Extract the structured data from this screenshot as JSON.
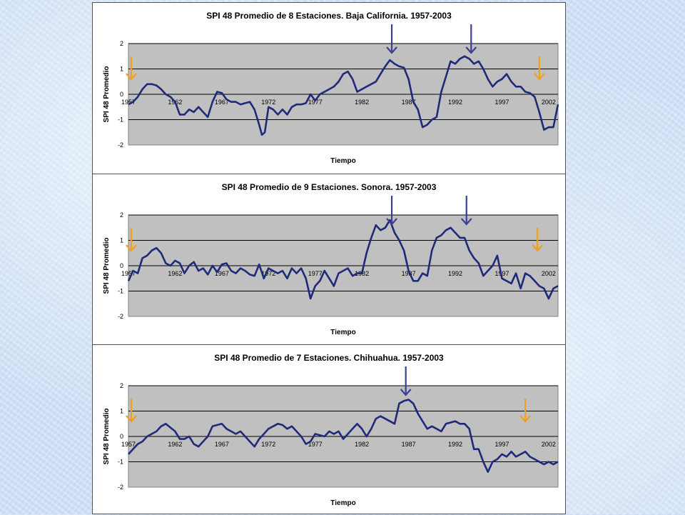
{
  "colors": {
    "plot_area": "#c0c0c0",
    "series_line": "#1f2a7a",
    "arrow_blue": "#3b3f95",
    "arrow_orange": "#f0a020",
    "gridline": "#000000"
  },
  "chart_data": [
    {
      "type": "line",
      "title": "SPI 48  Promedio de  8 Estaciones. Baja California. 1957-2003",
      "xlabel": "Tiempo",
      "ylabel": "SPI 48 Promedio",
      "xlim": [
        1957,
        2003
      ],
      "ylim": [
        -2,
        2
      ],
      "yticks": [
        "2",
        "1",
        "0",
        "-1",
        "-2"
      ],
      "xticks": [
        "1957",
        "1962",
        "1967",
        "1972",
        "1977",
        "1982",
        "1987",
        "1992",
        "1997",
        "2002"
      ],
      "grid": true,
      "series": [
        {
          "x": [
            1957.0,
            1957.5,
            1958.0,
            1958.5,
            1959.0,
            1959.5,
            1960.0,
            1960.5,
            1961.0,
            1961.5,
            1962.0,
            1962.5,
            1963.0,
            1963.5,
            1964.0,
            1964.5,
            1965.0,
            1965.5,
            1966.0,
            1966.5,
            1967.0,
            1967.5,
            1968.0,
            1968.5,
            1969.0,
            1969.5,
            1970.0,
            1970.5,
            1971.0,
            1971.3,
            1971.6,
            1972.0,
            1972.5,
            1973.0,
            1973.5,
            1974.0,
            1974.5,
            1975.0,
            1975.5,
            1976.0,
            1976.5,
            1977.0,
            1977.5,
            1978.0,
            1978.5,
            1979.0,
            1979.5,
            1980.0,
            1980.5,
            1981.0,
            1981.5,
            1982.0,
            1982.5,
            1983.0,
            1983.5,
            1984.0,
            1984.5,
            1985.0,
            1985.5,
            1986.0,
            1986.5,
            1987.0,
            1987.5,
            1988.0,
            1988.5,
            1989.0,
            1989.5,
            1990.0,
            1990.5,
            1991.0,
            1991.5,
            1992.0,
            1992.5,
            1993.0,
            1993.5,
            1994.0,
            1994.5,
            1995.0,
            1995.5,
            1996.0,
            1996.5,
            1997.0,
            1997.5,
            1998.0,
            1998.5,
            1999.0,
            1999.5,
            2000.0,
            2000.5,
            2001.0,
            2001.5,
            2002.0,
            2002.5,
            2003.0
          ],
          "y": [
            -0.4,
            -0.3,
            -0.1,
            0.2,
            0.4,
            0.4,
            0.35,
            0.2,
            0.0,
            -0.1,
            -0.3,
            -0.8,
            -0.8,
            -0.6,
            -0.7,
            -0.5,
            -0.7,
            -0.9,
            -0.3,
            0.1,
            0.05,
            -0.2,
            -0.3,
            -0.3,
            -0.4,
            -0.35,
            -0.3,
            -0.6,
            -1.2,
            -1.6,
            -1.5,
            -0.5,
            -0.6,
            -0.8,
            -0.6,
            -0.8,
            -0.5,
            -0.4,
            -0.4,
            -0.35,
            0.0,
            -0.25,
            0.0,
            0.1,
            0.2,
            0.3,
            0.5,
            0.8,
            0.9,
            0.6,
            0.1,
            0.2,
            0.3,
            0.4,
            0.5,
            0.8,
            1.1,
            1.35,
            1.2,
            1.1,
            1.05,
            0.6,
            -0.3,
            -0.6,
            -1.3,
            -1.2,
            -1.0,
            -0.9,
            0.1,
            0.7,
            1.3,
            1.2,
            1.4,
            1.5,
            1.4,
            1.2,
            1.3,
            1.0,
            0.6,
            0.3,
            0.5,
            0.6,
            0.8,
            0.5,
            0.3,
            0.3,
            0.1,
            0.05,
            -0.1,
            -0.7,
            -1.4,
            -1.3,
            -1.3,
            -0.4
          ]
        }
      ],
      "annotation_arrows": [
        {
          "color": "blue",
          "x": 1985.2
        },
        {
          "color": "blue",
          "x": 1993.7
        },
        {
          "color": "orange",
          "x": 1957.3
        },
        {
          "color": "orange",
          "x": 2001.0
        }
      ]
    },
    {
      "type": "line",
      "title": "SPI 48 Promedio de 9 Estaciones. Sonora. 1957-2003",
      "xlabel": "Tiempo",
      "ylabel": "SPI 48 Promedio",
      "xlim": [
        1957,
        2003
      ],
      "ylim": [
        -2,
        2
      ],
      "yticks": [
        "2",
        "1",
        "0",
        "-1",
        "-2"
      ],
      "xticks": [
        "1957",
        "1962",
        "1967",
        "1972",
        "1977",
        "1982",
        "1987",
        "1992",
        "1997",
        "2002"
      ],
      "grid": true,
      "series": [
        {
          "x": [
            1957.0,
            1957.5,
            1958.0,
            1958.5,
            1959.0,
            1959.5,
            1960.0,
            1960.5,
            1961.0,
            1961.5,
            1962.0,
            1962.5,
            1963.0,
            1963.5,
            1964.0,
            1964.5,
            1965.0,
            1965.5,
            1966.0,
            1966.5,
            1967.0,
            1967.5,
            1968.0,
            1968.5,
            1969.0,
            1969.5,
            1970.0,
            1970.5,
            1971.0,
            1971.5,
            1972.0,
            1972.5,
            1973.0,
            1973.5,
            1974.0,
            1974.5,
            1975.0,
            1975.5,
            1976.0,
            1976.5,
            1977.0,
            1977.5,
            1978.0,
            1978.5,
            1979.0,
            1979.5,
            1980.0,
            1980.5,
            1981.0,
            1981.5,
            1982.0,
            1982.5,
            1983.0,
            1983.5,
            1984.0,
            1984.5,
            1985.0,
            1985.5,
            1986.0,
            1986.5,
            1987.0,
            1987.5,
            1988.0,
            1988.5,
            1989.0,
            1989.5,
            1990.0,
            1990.5,
            1991.0,
            1991.5,
            1992.0,
            1992.5,
            1993.0,
            1993.5,
            1994.0,
            1994.5,
            1995.0,
            1995.5,
            1996.0,
            1996.5,
            1997.0,
            1997.5,
            1998.0,
            1998.5,
            1999.0,
            1999.5,
            2000.0,
            2000.5,
            2001.0,
            2001.5,
            2002.0,
            2002.5,
            2003.0
          ],
          "y": [
            -0.6,
            -0.2,
            -0.3,
            0.3,
            0.4,
            0.6,
            0.7,
            0.5,
            0.1,
            0.0,
            0.2,
            0.1,
            -0.3,
            0.0,
            0.15,
            -0.2,
            -0.1,
            -0.35,
            0.0,
            -0.25,
            0.05,
            0.1,
            -0.2,
            -0.3,
            -0.1,
            -0.2,
            -0.35,
            -0.4,
            0.05,
            -0.5,
            -0.1,
            -0.2,
            -0.3,
            -0.2,
            -0.5,
            -0.1,
            -0.3,
            -0.1,
            -0.5,
            -1.3,
            -0.8,
            -0.6,
            -0.2,
            -0.5,
            -0.8,
            -0.3,
            -0.2,
            -0.1,
            -0.4,
            -0.3,
            -0.3,
            0.5,
            1.1,
            1.6,
            1.4,
            1.5,
            1.8,
            1.3,
            1.0,
            0.6,
            -0.2,
            -0.6,
            -0.6,
            -0.3,
            -0.4,
            0.6,
            1.1,
            1.2,
            1.4,
            1.5,
            1.3,
            1.1,
            1.1,
            0.6,
            0.3,
            0.1,
            -0.4,
            -0.2,
            0.0,
            0.4,
            -0.5,
            -0.6,
            -0.7,
            -0.3,
            -0.9,
            -0.3,
            -0.4,
            -0.6,
            -0.8,
            -0.9,
            -1.3,
            -0.9,
            -0.8
          ]
        }
      ],
      "annotation_arrows": [
        {
          "color": "blue",
          "x": 1985.2
        },
        {
          "color": "blue",
          "x": 1993.2
        },
        {
          "color": "orange",
          "x": 1957.3
        },
        {
          "color": "orange",
          "x": 2000.8
        }
      ]
    },
    {
      "type": "line",
      "title": "SPI 48 Promedio de 7  Estaciones. Chihuahua. 1957-2003",
      "xlabel": "Tiempo",
      "ylabel": "SPI 48 Promedio",
      "xlim": [
        1957,
        2003
      ],
      "ylim": [
        -2,
        2
      ],
      "yticks": [
        "2",
        "1",
        "0",
        "-1",
        "-2"
      ],
      "xticks": [
        "1957",
        "1962",
        "1967",
        "1972",
        "1977",
        "1982",
        "1987",
        "1992",
        "1997",
        "2002"
      ],
      "grid": true,
      "series": [
        {
          "x": [
            1957.0,
            1957.5,
            1958.0,
            1958.5,
            1959.0,
            1959.5,
            1960.0,
            1960.5,
            1961.0,
            1961.5,
            1962.0,
            1962.5,
            1963.0,
            1963.5,
            1964.0,
            1964.5,
            1965.0,
            1965.5,
            1966.0,
            1966.5,
            1967.0,
            1967.5,
            1968.0,
            1968.5,
            1969.0,
            1969.5,
            1970.0,
            1970.5,
            1971.0,
            1971.5,
            1972.0,
            1972.5,
            1973.0,
            1973.5,
            1974.0,
            1974.5,
            1975.0,
            1975.5,
            1976.0,
            1976.5,
            1977.0,
            1977.5,
            1978.0,
            1978.5,
            1979.0,
            1979.5,
            1980.0,
            1980.5,
            1981.0,
            1981.5,
            1982.0,
            1982.5,
            1983.0,
            1983.5,
            1984.0,
            1984.5,
            1985.0,
            1985.5,
            1986.0,
            1986.5,
            1987.0,
            1987.5,
            1988.0,
            1988.5,
            1989.0,
            1989.5,
            1990.0,
            1990.5,
            1991.0,
            1991.5,
            1992.0,
            1992.5,
            1993.0,
            1993.5,
            1994.0,
            1994.5,
            1995.0,
            1995.5,
            1996.0,
            1996.5,
            1997.0,
            1997.5,
            1998.0,
            1998.5,
            1999.0,
            1999.5,
            2000.0,
            2000.5,
            2001.0,
            2001.5,
            2002.0,
            2002.5,
            2003.0
          ],
          "y": [
            -0.7,
            -0.5,
            -0.3,
            -0.2,
            0.0,
            0.1,
            0.2,
            0.4,
            0.5,
            0.35,
            0.2,
            -0.1,
            -0.1,
            0.0,
            -0.3,
            -0.4,
            -0.2,
            0.0,
            0.4,
            0.45,
            0.5,
            0.3,
            0.2,
            0.1,
            0.2,
            0.0,
            -0.2,
            -0.4,
            -0.1,
            0.1,
            0.3,
            0.4,
            0.5,
            0.45,
            0.3,
            0.4,
            0.2,
            0.0,
            -0.3,
            -0.2,
            0.1,
            0.05,
            0.0,
            0.2,
            0.1,
            0.2,
            -0.1,
            0.1,
            0.3,
            0.5,
            0.3,
            0.0,
            0.3,
            0.7,
            0.8,
            0.7,
            0.6,
            0.5,
            1.3,
            1.4,
            1.45,
            1.3,
            0.9,
            0.6,
            0.3,
            0.4,
            0.3,
            0.2,
            0.5,
            0.55,
            0.6,
            0.5,
            0.5,
            0.3,
            -0.5,
            -0.5,
            -1.0,
            -1.4,
            -1.0,
            -0.9,
            -0.7,
            -0.8,
            -0.6,
            -0.8,
            -0.7,
            -0.6,
            -0.8,
            -0.9,
            -1.0,
            -1.1,
            -1.0,
            -1.1,
            -1.0
          ]
        }
      ],
      "annotation_arrows": [
        {
          "color": "blue",
          "x": 1986.7
        },
        {
          "color": "orange",
          "x": 1957.3
        },
        {
          "color": "orange",
          "x": 1999.5
        }
      ]
    }
  ]
}
